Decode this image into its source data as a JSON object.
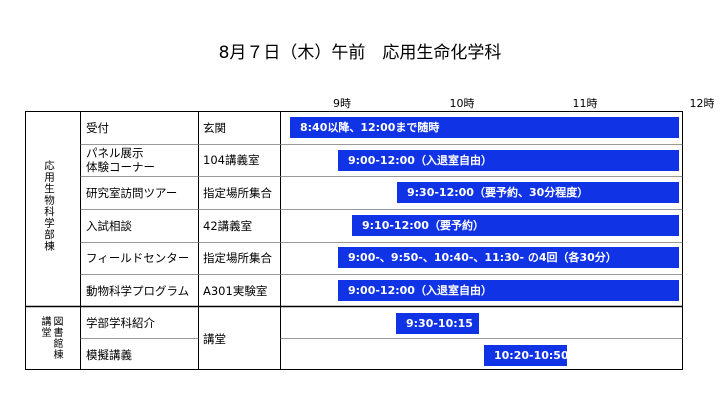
{
  "title": "8月７日（木）午前　応用生命化学科",
  "hours": [
    "9時",
    "10時",
    "11時",
    "12時"
  ],
  "accent_color": "#1133e6",
  "groups": [
    {
      "label": "応用生物科学部棟"
    },
    {
      "label_lines": [
        "図書館棟",
        "講堂"
      ]
    }
  ],
  "rows": [
    {
      "event": "受付",
      "place": "玄関",
      "bar": "8:40以降、12:00まで随時",
      "start": "8:40",
      "end": "12:00"
    },
    {
      "event_lines": [
        "パネル展示",
        "体験コーナー"
      ],
      "place": "104講義室",
      "bar": "9:00-12:00（入退室自由）",
      "start": "9:00",
      "end": "12:00"
    },
    {
      "event": "研究室訪問ツアー",
      "place": "指定場所集合",
      "bar": "9:30-12:00（要予約、30分程度）",
      "start": "9:30",
      "end": "12:00"
    },
    {
      "event": "入試相談",
      "place": "42講義室",
      "bar": "9:10-12:00（要予約）",
      "start": "9:10",
      "end": "12:00"
    },
    {
      "event": "フィールドセンター",
      "place": "指定場所集合",
      "bar": "9:00-、9:50-、10:40-、11:30- の4回（各30分）",
      "start": "9:00",
      "end": "12:00"
    },
    {
      "event": "動物科学プログラム",
      "place": "A301実験室",
      "bar": "9:00-12:00（入退室自由）",
      "start": "9:00",
      "end": "12:00"
    },
    {
      "event": "学部学科紹介",
      "place": "",
      "bar": "9:30-10:15",
      "start": "9:30",
      "end": "10:15"
    },
    {
      "event": "模擬講義",
      "place": "",
      "bar": "10:20-10:50",
      "start": "10:20",
      "end": "10:50"
    }
  ],
  "shared_place": "講堂"
}
